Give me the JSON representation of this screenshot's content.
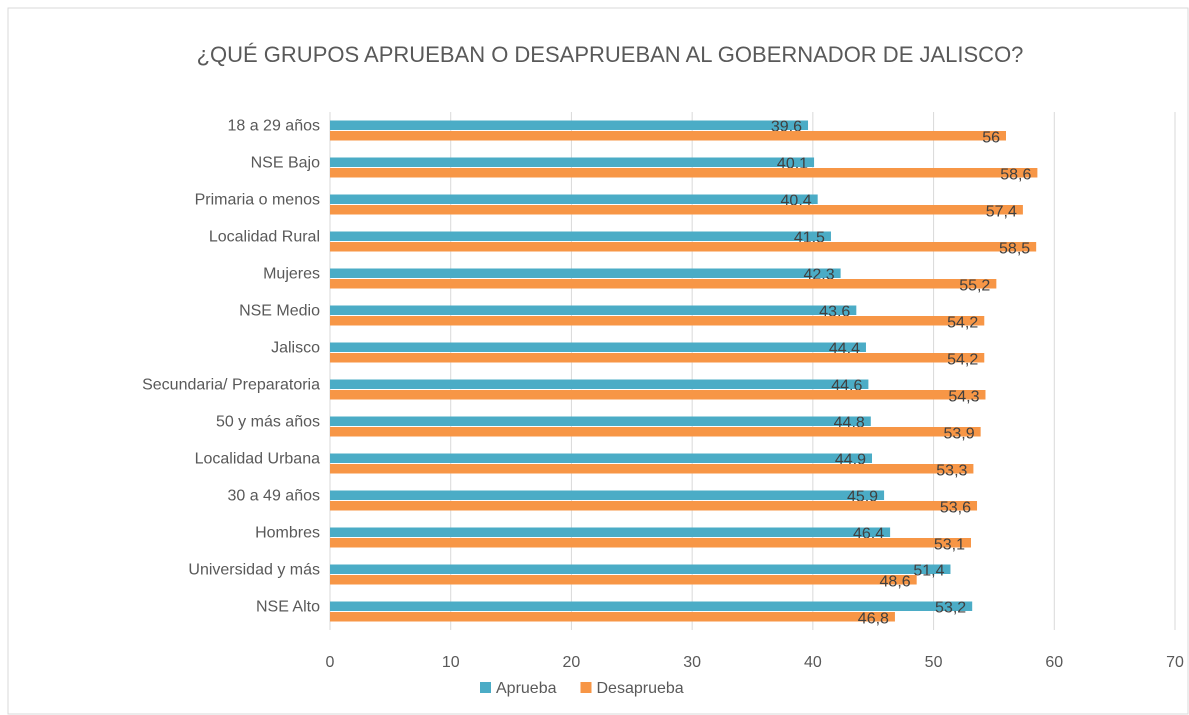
{
  "chart_data": {
    "type": "bar",
    "orientation": "horizontal",
    "title": "¿QUÉ GRUPOS APRUEBAN O DESAPRUEBAN AL GOBERNADOR DE JALISCO?",
    "categories": [
      "18 a 29 años",
      "NSE Bajo",
      "Primaria o menos",
      "Localidad Rural",
      "Mujeres",
      "NSE Medio",
      "Jalisco",
      "Secundaria/ Preparatoria",
      "50 y más años",
      "Localidad Urbana",
      "30 a 49 años",
      "Hombres",
      "Universidad y más",
      "NSE Alto"
    ],
    "series": [
      {
        "name": "Aprueba",
        "color": "#4bacc6",
        "values": [
          39.6,
          40.1,
          40.4,
          41.5,
          42.3,
          43.6,
          44.4,
          44.6,
          44.8,
          44.9,
          45.9,
          46.4,
          51.4,
          53.2
        ],
        "value_labels": [
          "39,6",
          "40,1",
          "40,4",
          "41,5",
          "42,3",
          "43,6",
          "44,4",
          "44,6",
          "44,8",
          "44,9",
          "45,9",
          "46,4",
          "51,4",
          "53,2"
        ]
      },
      {
        "name": "Desaprueba",
        "color": "#f79646",
        "values": [
          56,
          58.6,
          57.4,
          58.5,
          55.2,
          54.2,
          54.2,
          54.3,
          53.9,
          53.3,
          53.6,
          53.1,
          48.6,
          46.8
        ],
        "value_labels": [
          "56",
          "58,6",
          "57,4",
          "58,5",
          "55,2",
          "54,2",
          "54,2",
          "54,3",
          "53,9",
          "53,3",
          "53,6",
          "53,1",
          "48,6",
          "46,8"
        ]
      }
    ],
    "xlim": [
      0,
      70
    ],
    "xticks": [
      0,
      10,
      20,
      30,
      40,
      50,
      60,
      70
    ],
    "grid": true,
    "legend": "bottom"
  }
}
